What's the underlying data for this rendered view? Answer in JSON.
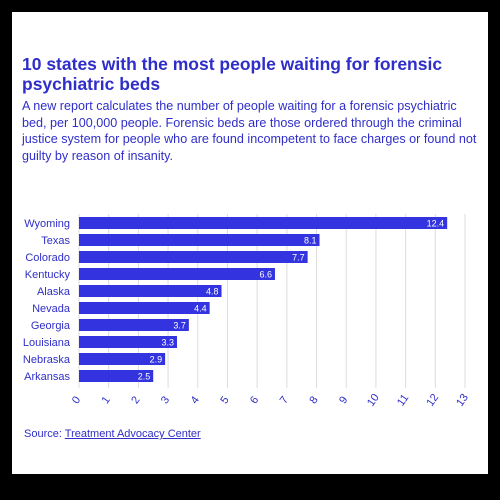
{
  "title": "10 states with the most people waiting for forensic psychiatric beds",
  "subtitle": "A new report calculates the number of people waiting for a forensic psychiatric bed, per 100,000 people. Forensic beds are those ordered through the criminal justice system for people who are found incompetent to face charges or found not guilty by reason of insanity.",
  "source": {
    "prefix": "Source: ",
    "link_text": "Treatment Advocacy Center"
  },
  "colors": {
    "accent": "#2f2ec9",
    "bar": "#3333e0",
    "grid": "#dcdcdc",
    "background": "#000000",
    "card": "#ffffff"
  },
  "chart_data": {
    "type": "bar",
    "orientation": "horizontal",
    "categories": [
      "Wyoming",
      "Texas",
      "Colorado",
      "Kentucky",
      "Alaska",
      "Nevada",
      "Georgia",
      "Louisiana",
      "Nebraska",
      "Arkansas"
    ],
    "values": [
      12.4,
      8.1,
      7.7,
      6.6,
      4.8,
      4.4,
      3.7,
      3.3,
      2.9,
      2.5
    ],
    "xticks": [
      0,
      1,
      2,
      3,
      4,
      5,
      6,
      7,
      8,
      9,
      10,
      11,
      12,
      13
    ],
    "xlim": [
      0,
      13
    ],
    "grid": true,
    "data_labels": true,
    "title": "",
    "xlabel": "",
    "ylabel": ""
  }
}
